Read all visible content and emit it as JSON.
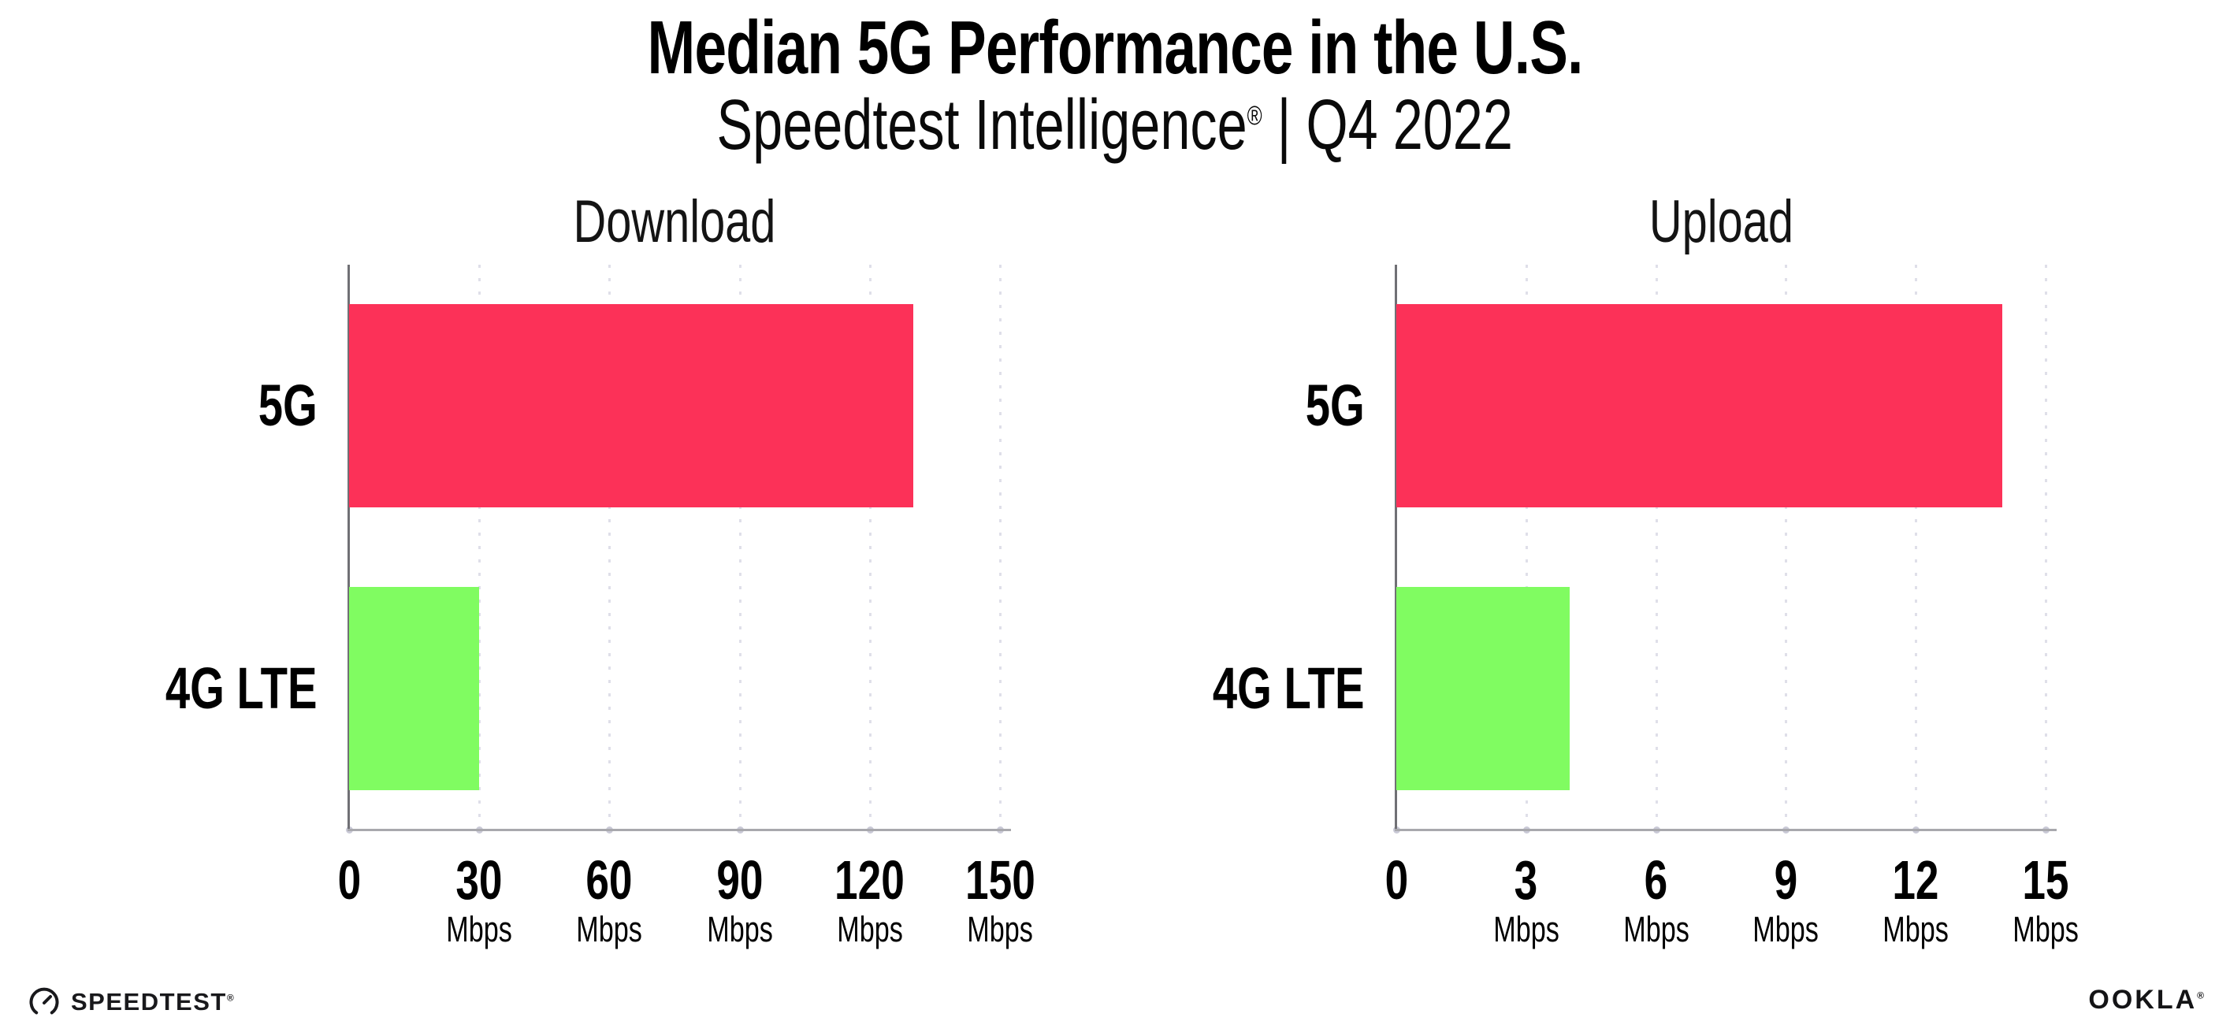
{
  "header": {
    "title": "Median 5G Performance in the U.S.",
    "subtitle_brand": "Speedtest Intelligence",
    "subtitle_reg": "®",
    "subtitle_separator": "|",
    "subtitle_period": "Q4 2022"
  },
  "footer": {
    "speedtest_wordmark": "SPEEDTEST",
    "speedtest_reg": "®",
    "speedtest_icon": "gauge-icon",
    "ookla_wordmark": "OOKLA",
    "ookla_reg": "®"
  },
  "colors": {
    "bar_5g": "#FC3158",
    "bar_4g_lte": "#80FC61",
    "y_axis": "#707075",
    "x_axis": "#a8a8ad",
    "gridline": "#dfdfe9",
    "text": "#000000"
  },
  "chart_data": [
    {
      "type": "bar",
      "orientation": "horizontal",
      "title": "Download",
      "categories": [
        "5G",
        "4G LTE"
      ],
      "values": [
        130,
        30
      ],
      "unit": "Mbps",
      "xlim": [
        0,
        150
      ],
      "ticks": [
        0,
        30,
        60,
        90,
        120,
        150
      ],
      "tick_unit_label": "Mbps",
      "bar_colors": [
        "#FC3158",
        "#80FC61"
      ],
      "grid": "dotted-vertical",
      "legend": "none"
    },
    {
      "type": "bar",
      "orientation": "horizontal",
      "title": "Upload",
      "categories": [
        "5G",
        "4G LTE"
      ],
      "values": [
        14,
        4
      ],
      "unit": "Mbps",
      "xlim": [
        0,
        15
      ],
      "ticks": [
        0,
        3,
        6,
        9,
        12,
        15
      ],
      "tick_unit_label": "Mbps",
      "bar_colors": [
        "#FC3158",
        "#80FC61"
      ],
      "grid": "dotted-vertical",
      "legend": "none"
    }
  ]
}
